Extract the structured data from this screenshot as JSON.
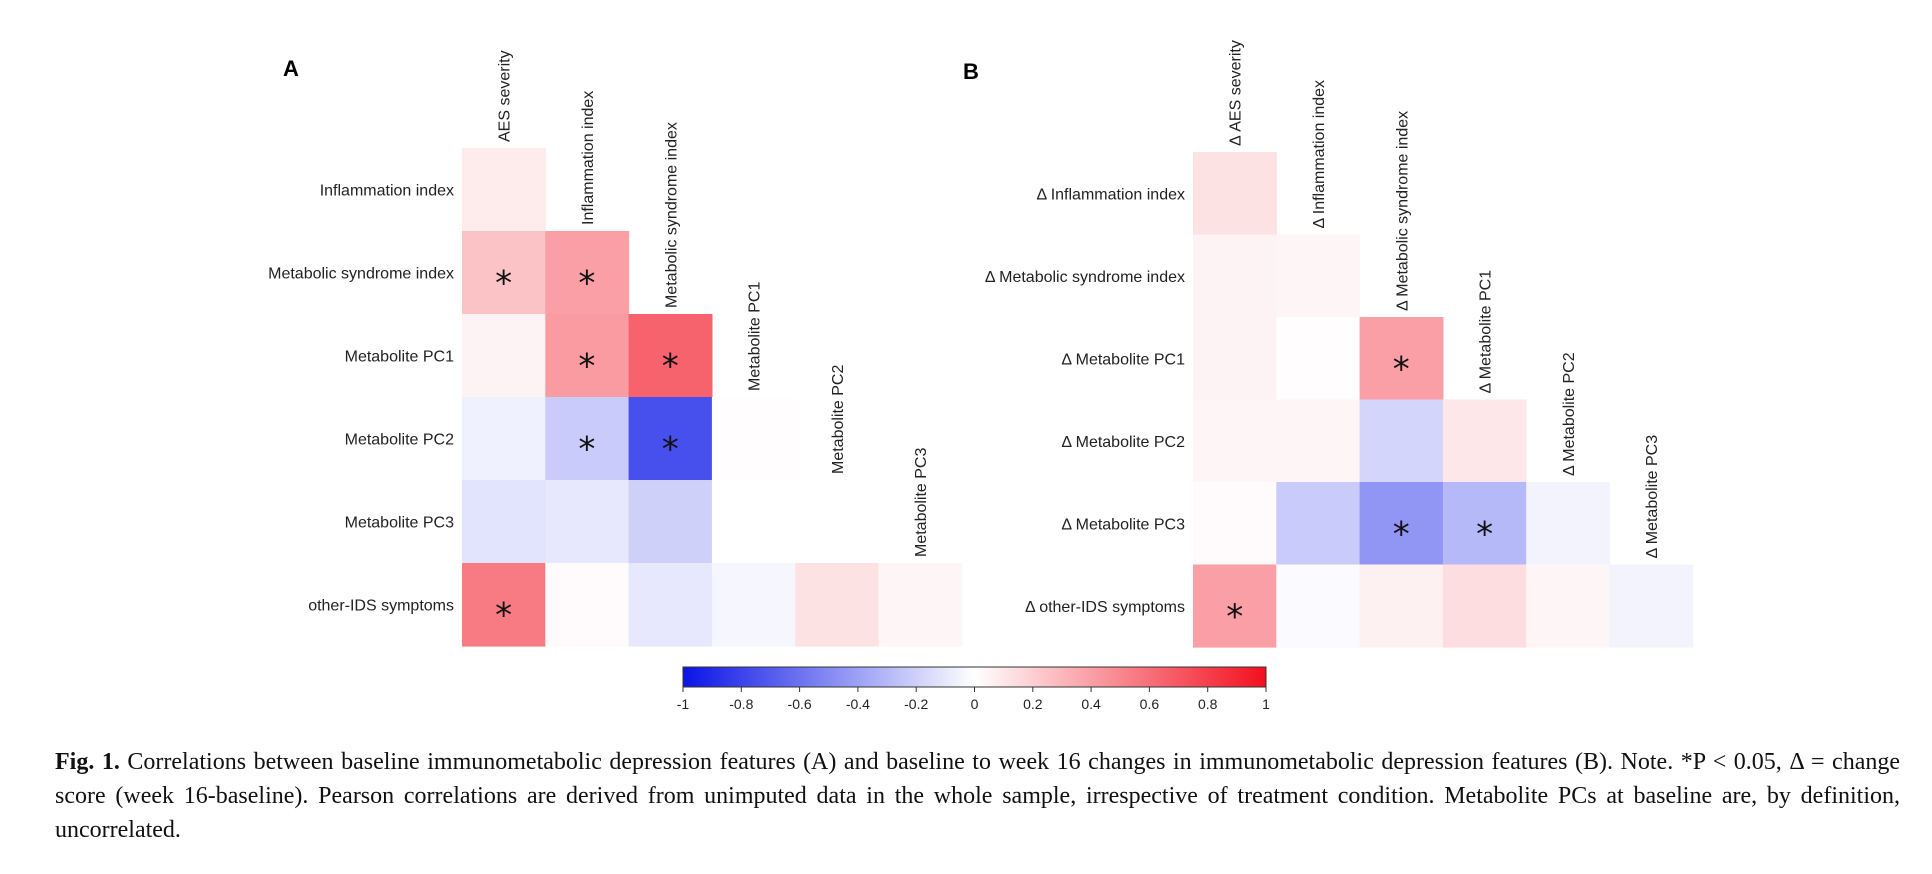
{
  "chart_data": [
    {
      "type": "heatmap",
      "panel_label": "A",
      "row_labels": [
        "Inflammation index",
        "Metabolic syndrome index",
        "Metabolite PC1",
        "Metabolite PC2",
        "Metabolite PC3",
        "other-IDS symptoms"
      ],
      "col_labels": [
        "AES severity",
        "Inflammation index",
        "Metabolic syndrome index",
        "Metabolite PC1",
        "Metabolite PC2",
        "Metabolite PC3"
      ],
      "values": [
        [
          0.08,
          null,
          null,
          null,
          null,
          null
        ],
        [
          0.25,
          0.4,
          null,
          null,
          null,
          null
        ],
        [
          0.05,
          0.42,
          0.65,
          null,
          null,
          null
        ],
        [
          -0.06,
          -0.22,
          -0.75,
          0.01,
          null,
          null
        ],
        [
          -0.12,
          -0.1,
          -0.2,
          0.0,
          0.0,
          null
        ],
        [
          0.55,
          0.02,
          -0.1,
          -0.04,
          0.12,
          0.04
        ]
      ],
      "significant": [
        [
          false,
          false,
          false,
          false,
          false,
          false
        ],
        [
          true,
          true,
          false,
          false,
          false,
          false
        ],
        [
          false,
          true,
          true,
          false,
          false,
          false
        ],
        [
          false,
          true,
          true,
          false,
          false,
          false
        ],
        [
          false,
          false,
          false,
          false,
          false,
          false
        ],
        [
          true,
          false,
          false,
          false,
          false,
          false
        ]
      ],
      "significance_marker": "*"
    },
    {
      "type": "heatmap",
      "panel_label": "B",
      "row_labels": [
        "Δ Inflammation index",
        "Δ Metabolic syndrome index",
        "Δ Metabolite PC1",
        "Δ Metabolite PC2",
        "Δ Metabolite PC3",
        "Δ other-IDS symptoms"
      ],
      "col_labels": [
        "Δ AES severity",
        "Δ Inflammation index",
        "Δ Metabolic syndrome index",
        "Δ Metabolite PC1",
        "Δ Metabolite PC2",
        "Δ Metabolite PC3"
      ],
      "values": [
        [
          0.12,
          null,
          null,
          null,
          null,
          null
        ],
        [
          0.05,
          0.04,
          null,
          null,
          null,
          null
        ],
        [
          0.05,
          0.01,
          0.4,
          null,
          null,
          null
        ],
        [
          0.04,
          0.04,
          -0.18,
          0.1,
          null,
          null
        ],
        [
          0.02,
          -0.22,
          -0.45,
          -0.3,
          -0.05,
          null
        ],
        [
          0.4,
          -0.02,
          0.06,
          0.14,
          0.04,
          -0.05
        ]
      ],
      "significant": [
        [
          false,
          false,
          false,
          false,
          false,
          false
        ],
        [
          false,
          false,
          false,
          false,
          false,
          false
        ],
        [
          false,
          false,
          true,
          false,
          false,
          false
        ],
        [
          false,
          false,
          false,
          false,
          false,
          false
        ],
        [
          false,
          false,
          true,
          true,
          false,
          false
        ],
        [
          true,
          false,
          false,
          false,
          false,
          false
        ]
      ],
      "significance_marker": "*"
    }
  ],
  "colorbar": {
    "min": -1,
    "max": 1,
    "ticks": [
      "-1",
      "-0.8",
      "-0.6",
      "-0.4",
      "-0.2",
      "0",
      "0.2",
      "0.4",
      "0.6",
      "0.8",
      "1"
    ],
    "colors": {
      "negative": "#0a14e6",
      "neutral": "#ffffff",
      "positive": "#f20f1e"
    }
  },
  "caption": {
    "label": "Fig. 1.",
    "text": " Correlations between baseline immunometabolic depression features (A) and baseline to week 16 changes in immunometabolic depression features (B). Note. *P < 0.05, Δ = change score (week 16-baseline). Pearson correlations are derived from unimputed data in the whole sample, irrespective of treatment condition. Metabolite PCs at baseline are, by definition, uncorrelated."
  }
}
